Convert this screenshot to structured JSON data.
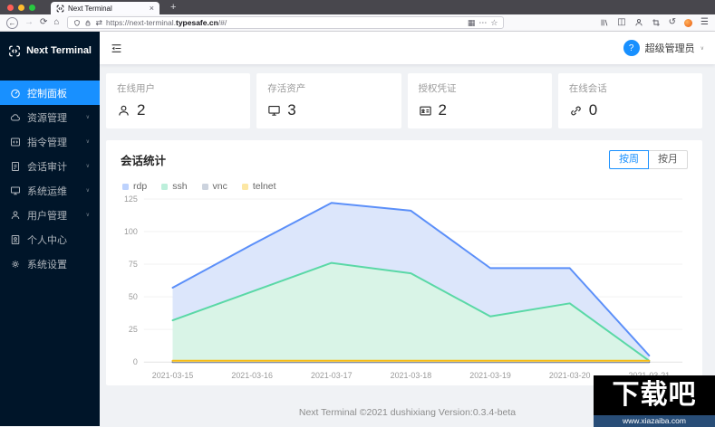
{
  "browser": {
    "tab_title": "Next Terminal",
    "url": {
      "prefix": "https://next-terminal.",
      "domain": "typesafe.cn",
      "suffix": "/#/"
    }
  },
  "icons": {
    "back": "←",
    "forward": "→",
    "reload": "⟳",
    "home": "⌂",
    "translate": "⇄",
    "qr": "▦",
    "more": "⋯",
    "star": "☆",
    "panel": "◫",
    "undo": "↺",
    "menu": "☰",
    "close": "×",
    "plus": "+",
    "caret": "∨",
    "avatar_glyph": "?"
  },
  "sidebar": {
    "logo_text": "Next Terminal",
    "items": [
      {
        "label": "控制面板",
        "active": true,
        "expandable": false
      },
      {
        "label": "资源管理",
        "active": false,
        "expandable": true
      },
      {
        "label": "指令管理",
        "active": false,
        "expandable": true
      },
      {
        "label": "会话审计",
        "active": false,
        "expandable": true
      },
      {
        "label": "系统运维",
        "active": false,
        "expandable": true
      },
      {
        "label": "用户管理",
        "active": false,
        "expandable": true
      },
      {
        "label": "个人中心",
        "active": false,
        "expandable": false
      },
      {
        "label": "系统设置",
        "active": false,
        "expandable": false
      }
    ]
  },
  "header": {
    "user_name": "超级管理员"
  },
  "stats": [
    {
      "label": "在线用户",
      "value": "2",
      "icon": "user-icon"
    },
    {
      "label": "存活资产",
      "value": "3",
      "icon": "desktop-icon"
    },
    {
      "label": "授权凭证",
      "value": "2",
      "icon": "idcard-icon"
    },
    {
      "label": "在线会话",
      "value": "0",
      "icon": "link-icon"
    }
  ],
  "session_panel": {
    "title": "会话统计",
    "toggle": {
      "week": "按周",
      "month": "按月",
      "selected": "按周"
    }
  },
  "chart_data": {
    "type": "area",
    "title": "会话统计",
    "x": [
      "2021-03-15",
      "2021-03-16",
      "2021-03-17",
      "2021-03-18",
      "2021-03-19",
      "2021-03-20",
      "2021-03-21"
    ],
    "series": [
      {
        "name": "rdp",
        "color": "#5B8FF9",
        "fill": "#dce6fb",
        "legend_color": "#bdd2fd",
        "values": [
          57,
          90,
          122,
          116,
          72,
          72,
          5
        ]
      },
      {
        "name": "ssh",
        "color": "#5AD8A6",
        "fill": "#d9f4e7",
        "legend_color": "#bdefdb",
        "values": [
          32,
          54,
          76,
          68,
          35,
          45,
          1
        ]
      },
      {
        "name": "vnc",
        "color": "#5D7092",
        "fill": "#dfe3ea",
        "legend_color": "#ccd3de",
        "values": [
          0,
          0,
          0,
          0,
          0,
          0,
          0
        ]
      },
      {
        "name": "telnet",
        "color": "#F6BD16",
        "fill": "#fdf0cd",
        "legend_color": "#fce7a4",
        "values": [
          1,
          1,
          1,
          1,
          1,
          1,
          1
        ]
      }
    ],
    "ylim": [
      0,
      125
    ],
    "yticks": [
      0,
      25,
      50,
      75,
      100,
      125
    ],
    "grid": true,
    "legend_position": "top-left"
  },
  "footer": {
    "text": "Next Terminal ©2021 dushixiang Version:0.3.4-beta"
  },
  "watermark": {
    "text": "下载吧",
    "url": "www.xiazaiba.com"
  }
}
